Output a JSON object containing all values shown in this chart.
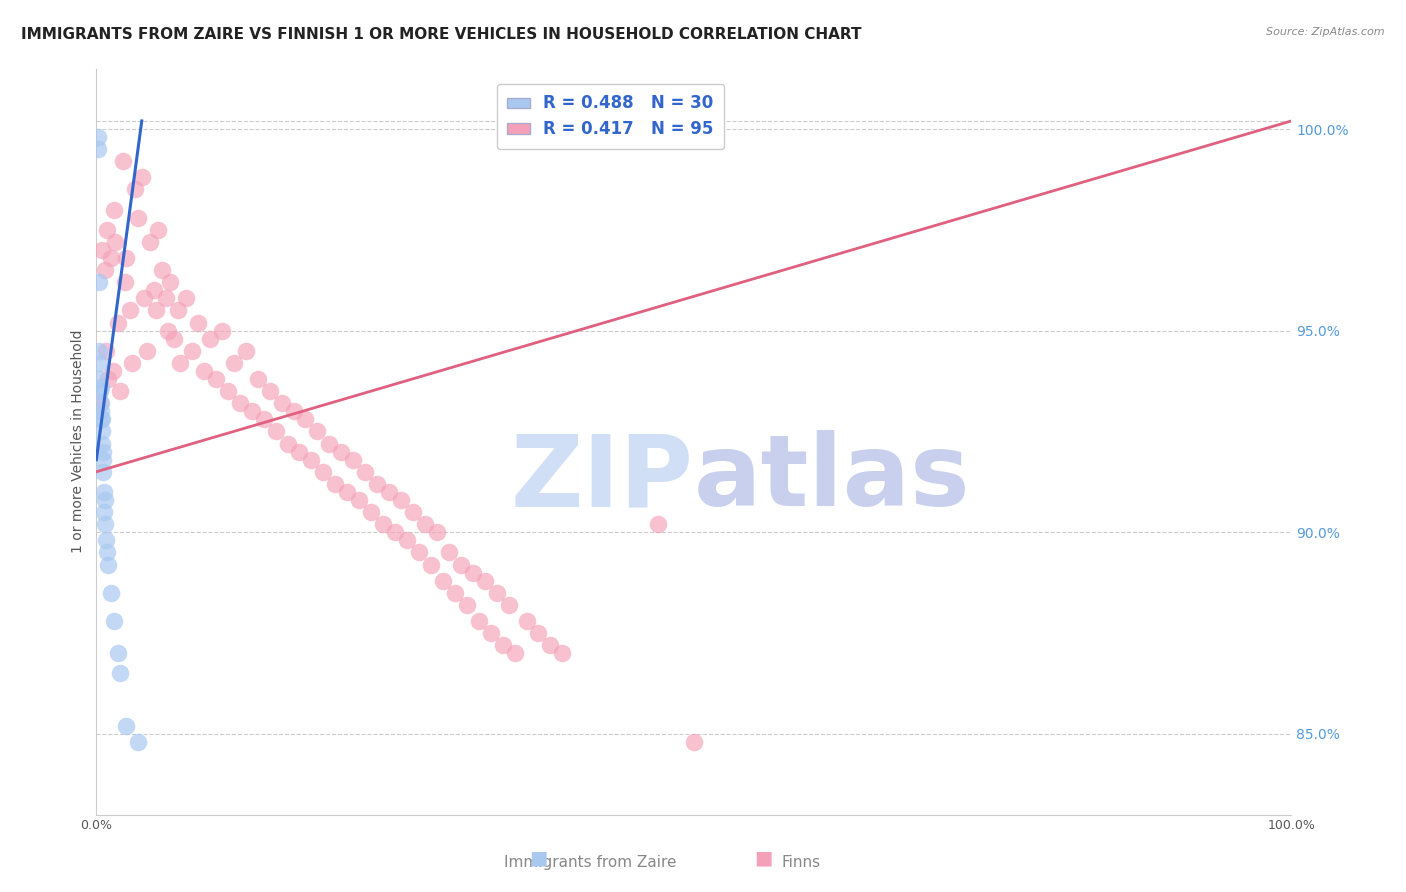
{
  "title": "IMMIGRANTS FROM ZAIRE VS FINNISH 1 OR MORE VEHICLES IN HOUSEHOLD CORRELATION CHART",
  "source": "Source: ZipAtlas.com",
  "ylabel": "1 or more Vehicles in Household",
  "x_min": 0.0,
  "x_max": 100.0,
  "y_min": 83.0,
  "y_max": 101.5,
  "x_ticks": [
    0.0,
    10.0,
    20.0,
    30.0,
    40.0,
    50.0,
    60.0,
    70.0,
    80.0,
    90.0,
    100.0
  ],
  "x_tick_labels": [
    "0.0%",
    "",
    "",
    "",
    "",
    "",
    "",
    "",
    "",
    "",
    "100.0%"
  ],
  "y_ticks_right": [
    85.0,
    90.0,
    95.0,
    100.0
  ],
  "y_tick_labels_right": [
    "85.0%",
    "90.0%",
    "95.0%",
    "100.0%"
  ],
  "legend_labels": [
    "Immigrants from Zaire",
    "Finns"
  ],
  "blue_r": 0.488,
  "blue_n": 30,
  "pink_r": 0.417,
  "pink_n": 95,
  "blue_color": "#a8c8f0",
  "pink_color": "#f4a0b8",
  "blue_line_color": "#3366cc",
  "pink_line_color": "#e06080",
  "legend_text_color": "#3366cc",
  "grid_color": "#cccccc",
  "background_color": "#ffffff",
  "title_fontsize": 11,
  "axis_label_fontsize": 10,
  "tick_fontsize": 9,
  "legend_fontsize": 11,
  "blue_points_x": [
    0.1,
    0.15,
    0.18,
    0.2,
    0.25,
    0.28,
    0.3,
    0.35,
    0.38,
    0.4,
    0.42,
    0.45,
    0.48,
    0.5,
    0.52,
    0.55,
    0.58,
    0.6,
    0.65,
    0.7,
    0.75,
    0.8,
    0.9,
    1.0,
    1.2,
    1.5,
    1.8,
    2.0,
    2.5,
    3.5
  ],
  "blue_points_y": [
    99.8,
    99.5,
    93.8,
    96.2,
    94.5,
    93.5,
    94.2,
    93.2,
    93.6,
    92.8,
    93.0,
    92.5,
    92.2,
    92.8,
    91.8,
    92.0,
    91.5,
    91.0,
    90.5,
    90.8,
    90.2,
    89.8,
    89.5,
    89.2,
    88.5,
    87.8,
    87.0,
    86.5,
    85.2,
    84.8
  ],
  "pink_points_x": [
    0.3,
    0.5,
    0.7,
    0.8,
    0.9,
    1.0,
    1.2,
    1.4,
    1.5,
    1.6,
    1.8,
    2.0,
    2.2,
    2.4,
    2.5,
    2.8,
    3.0,
    3.2,
    3.5,
    3.8,
    4.0,
    4.2,
    4.5,
    4.8,
    5.0,
    5.2,
    5.5,
    5.8,
    6.0,
    6.2,
    6.5,
    6.8,
    7.0,
    7.5,
    8.0,
    8.5,
    9.0,
    9.5,
    10.0,
    10.5,
    11.0,
    11.5,
    12.0,
    12.5,
    13.0,
    13.5,
    14.0,
    14.5,
    15.0,
    15.5,
    16.0,
    16.5,
    17.0,
    17.5,
    18.0,
    18.5,
    19.0,
    19.5,
    20.0,
    20.5,
    21.0,
    21.5,
    22.0,
    22.5,
    23.0,
    23.5,
    24.0,
    24.5,
    25.0,
    25.5,
    26.0,
    26.5,
    27.0,
    27.5,
    28.0,
    28.5,
    29.0,
    29.5,
    30.0,
    30.5,
    31.0,
    31.5,
    32.0,
    32.5,
    33.0,
    33.5,
    34.0,
    34.5,
    35.0,
    36.0,
    37.0,
    38.0,
    39.0,
    47.0,
    50.0
  ],
  "pink_points_y": [
    93.2,
    97.0,
    96.5,
    94.5,
    97.5,
    93.8,
    96.8,
    94.0,
    98.0,
    97.2,
    95.2,
    93.5,
    99.2,
    96.2,
    96.8,
    95.5,
    94.2,
    98.5,
    97.8,
    98.8,
    95.8,
    94.5,
    97.2,
    96.0,
    95.5,
    97.5,
    96.5,
    95.8,
    95.0,
    96.2,
    94.8,
    95.5,
    94.2,
    95.8,
    94.5,
    95.2,
    94.0,
    94.8,
    93.8,
    95.0,
    93.5,
    94.2,
    93.2,
    94.5,
    93.0,
    93.8,
    92.8,
    93.5,
    92.5,
    93.2,
    92.2,
    93.0,
    92.0,
    92.8,
    91.8,
    92.5,
    91.5,
    92.2,
    91.2,
    92.0,
    91.0,
    91.8,
    90.8,
    91.5,
    90.5,
    91.2,
    90.2,
    91.0,
    90.0,
    90.8,
    89.8,
    90.5,
    89.5,
    90.2,
    89.2,
    90.0,
    88.8,
    89.5,
    88.5,
    89.2,
    88.2,
    89.0,
    87.8,
    88.8,
    87.5,
    88.5,
    87.2,
    88.2,
    87.0,
    87.8,
    87.5,
    87.2,
    87.0,
    90.2,
    84.8
  ],
  "blue_line_x": [
    0.0,
    3.8
  ],
  "blue_line_y": [
    91.8,
    100.2
  ],
  "pink_line_x": [
    0.0,
    100.0
  ],
  "pink_line_y": [
    91.5,
    100.2
  ],
  "watermark_zip_color": "#d0dff5",
  "watermark_atlas_color": "#c8d0ee"
}
